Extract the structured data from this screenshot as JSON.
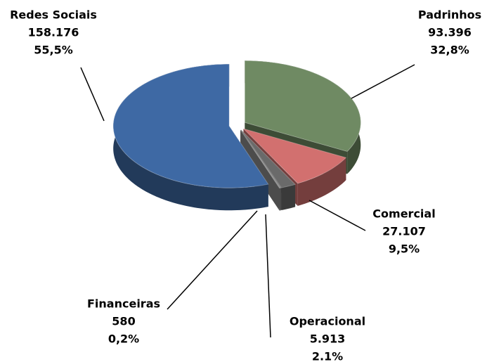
{
  "chart_data": {
    "type": "pie3d",
    "categories": [
      "Padrinhos",
      "Comercial",
      "Operacional",
      "Financeiras",
      "Redes Sociais"
    ],
    "values": [
      93396,
      27107,
      5913,
      580,
      158176
    ],
    "value_labels": [
      "93.396",
      "27.107",
      "5.913",
      "580",
      "158.176"
    ],
    "percentages": [
      32.8,
      9.5,
      2.1,
      0.2,
      55.5
    ],
    "percent_labels": [
      "32,8%",
      "9,5%",
      "2.1%",
      "0,2%",
      "55,5%"
    ],
    "colors": [
      "#6f8a63",
      "#d2706f",
      "#6a6a6a",
      "#8a8a8a",
      "#3e69a4"
    ]
  }
}
